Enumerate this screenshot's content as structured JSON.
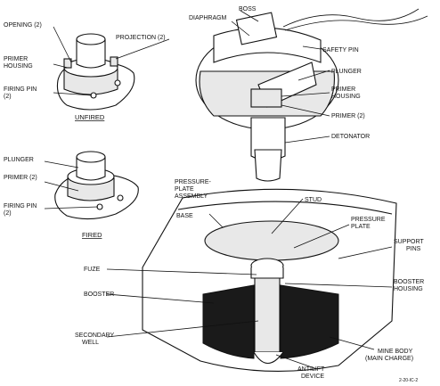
{
  "labels": {
    "opening": "OPENING (2)",
    "projection": "PROJECTION (2)",
    "primer_housing_unfired": "PRIMER\nHOUSING",
    "firing_pin_unfired": "FIRING PIN\n(2)",
    "unfired": "UNFIRED",
    "plunger_fired": "PLUNGER",
    "primer_fired": "PRIMER (2)",
    "firing_pin_fired": "FIRING PIN\n(2)",
    "fired": "FIRED",
    "diaphragm": "DIAPHRAGM",
    "boss": "BOSS",
    "safety_pin": "SAFETY PIN",
    "plunger_top": "PLUNGER",
    "primer_housing_top": "PRIMER\nHOUSING",
    "primer_top": "PRIMER (2)",
    "detonator": "DETONATOR",
    "pressure_plate_assembly": "PRESSURE-\nPLATE\nASSEMBLY",
    "stud": "STUD",
    "base": "BASE",
    "pressure_plate": "PRESSURE\nPLATE",
    "support_pins": "SUPPORT\nPINS",
    "fuze": "FUZE",
    "booster": "BOOSTER",
    "booster_housing": "BOOSTER\nHOUSING",
    "secondary_well": "SECONDARY\nWELL",
    "mine_body": "MINE BODY\n(MAIN CHARGE)",
    "antilift_device": "ANTILIFT\nDEVICE",
    "figure_code": "2-20-IC-2"
  }
}
